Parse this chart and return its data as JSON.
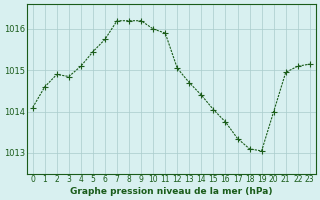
{
  "x": [
    0,
    1,
    2,
    3,
    4,
    5,
    6,
    7,
    8,
    9,
    10,
    11,
    12,
    13,
    14,
    15,
    16,
    17,
    18,
    19,
    20,
    21,
    22,
    23
  ],
  "y": [
    1014.1,
    1014.6,
    1014.9,
    1014.85,
    1015.1,
    1015.45,
    1015.75,
    1016.2,
    1016.2,
    1016.2,
    1016.0,
    1015.9,
    1015.05,
    1014.7,
    1014.4,
    1014.05,
    1013.75,
    1013.35,
    1013.1,
    1013.05,
    1014.0,
    1014.95,
    1015.1,
    1015.15
  ],
  "line_color": "#1a5c1a",
  "marker": "+",
  "marker_size": 4,
  "background_color": "#d8f0f0",
  "grid_color": "#aacccc",
  "xlabel": "Graphe pression niveau de la mer (hPa)",
  "xlabel_color": "#1a5c1a",
  "tick_color": "#1a5c1a",
  "axis_color": "#1a5c1a",
  "ylim": [
    1012.5,
    1016.6
  ],
  "yticks": [
    1013,
    1014,
    1015,
    1016
  ],
  "xlim": [
    -0.5,
    23.5
  ],
  "xticks": [
    0,
    1,
    2,
    3,
    4,
    5,
    6,
    7,
    8,
    9,
    10,
    11,
    12,
    13,
    14,
    15,
    16,
    17,
    18,
    19,
    20,
    21,
    22,
    23
  ]
}
